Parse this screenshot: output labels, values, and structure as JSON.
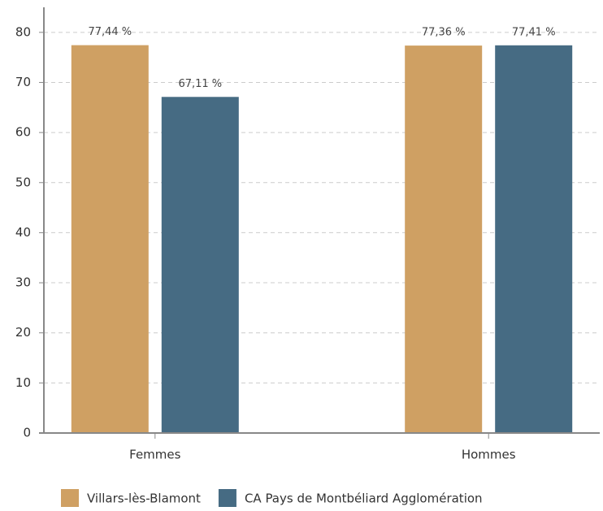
{
  "chart_data": {
    "type": "bar",
    "categories": [
      "Femmes",
      "Hommes"
    ],
    "series": [
      {
        "name": "Villars-lès-Blamont",
        "color": "#cfa063",
        "values": [
          77.44,
          77.36
        ],
        "value_labels": [
          "77,44 %",
          "77,36 %"
        ]
      },
      {
        "name": "CA Pays de Montbéliard Agglomération",
        "color": "#466b83",
        "values": [
          67.11,
          77.41
        ],
        "value_labels": [
          "67,11 %",
          "77,41 %"
        ]
      }
    ],
    "ylim": [
      0,
      85
    ],
    "yticks": [
      0,
      10,
      20,
      30,
      40,
      50,
      60,
      70,
      80
    ],
    "grid": true,
    "legend": "bottom"
  }
}
